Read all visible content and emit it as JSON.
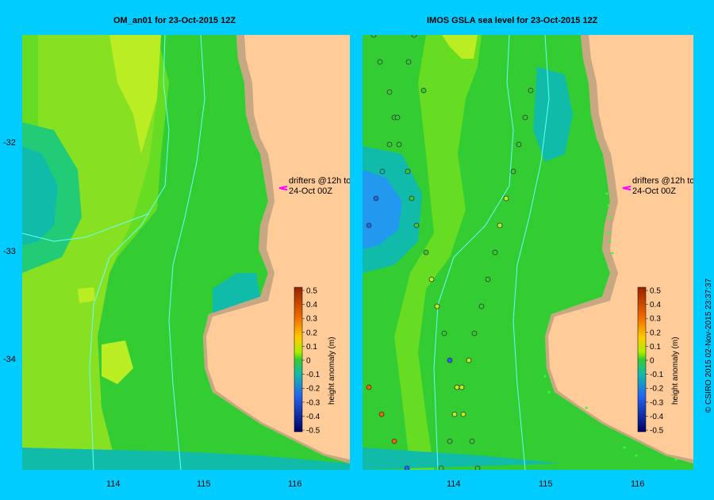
{
  "left_panel": {
    "title": "OM_an01  for 23-Oct-2015 12Z",
    "annotation": [
      "drifters @12h to",
      "24-Oct 00Z"
    ],
    "colorbar_label": "height anomaly (m)"
  },
  "right_panel": {
    "title": "IMOS GSLA sea level  for 23-Oct-2015 12Z",
    "annotation": [
      "drifters @12h to",
      "24-Oct 00Z"
    ],
    "colorbar_label": "height anomaly (m)"
  },
  "colorbar_ticks": [
    "0.5",
    "0.4",
    "0.3",
    "0.2",
    "0.1",
    "0",
    "-0.1",
    "-0.2",
    "-0.3",
    "-0.4",
    "-0.5"
  ],
  "x_ticks": [
    "114",
    "115",
    "116"
  ],
  "y_ticks": [
    "-32",
    "-33",
    "-34"
  ],
  "credit": "© CSIRO 2015   02-Nov-2015 23:37:37",
  "colors": {
    "background": "#00ccff",
    "land": "#ffcc99",
    "shelf": "#c8a882",
    "contour": "#66ffff",
    "drifter_arrow": "#ff00ff"
  }
}
